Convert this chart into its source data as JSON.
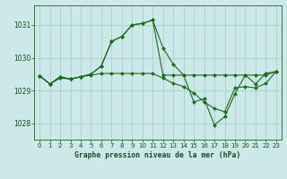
{
  "title": "Graphe pression niveau de la mer (hPa)",
  "background_color": "#cce8e8",
  "grid_color": "#aad0d0",
  "line_color": "#1a6b1a",
  "marker_color": "#1a6b1a",
  "xlim": [
    -0.5,
    23.5
  ],
  "ylim": [
    1027.5,
    1031.6
  ],
  "yticks": [
    1028,
    1029,
    1030,
    1031
  ],
  "xticks": [
    0,
    1,
    2,
    3,
    4,
    5,
    6,
    7,
    8,
    9,
    10,
    11,
    12,
    13,
    14,
    15,
    16,
    17,
    18,
    19,
    20,
    21,
    22,
    23
  ],
  "series": [
    [
      1029.45,
      1029.2,
      1029.42,
      1029.35,
      1029.42,
      1029.5,
      1029.75,
      1030.5,
      1030.65,
      1031.0,
      1031.05,
      1031.15,
      1030.3,
      1029.8,
      1029.47,
      1028.65,
      1028.75,
      1027.95,
      1028.2,
      1028.9,
      1029.47,
      1029.2,
      1029.52,
      1029.58
    ],
    [
      1029.45,
      1029.2,
      1029.42,
      1029.35,
      1029.42,
      1029.5,
      1029.75,
      1030.5,
      1030.65,
      1031.0,
      1031.05,
      1031.15,
      1029.47,
      1029.47,
      1029.47,
      1029.47,
      1029.47,
      1029.47,
      1029.47,
      1029.47,
      1029.47,
      1029.47,
      1029.47,
      1029.58
    ],
    [
      1029.45,
      1029.2,
      1029.38,
      1029.35,
      1029.42,
      1029.47,
      1029.52,
      1029.52,
      1029.52,
      1029.52,
      1029.52,
      1029.52,
      1029.38,
      1029.22,
      1029.12,
      1028.92,
      1028.65,
      1028.45,
      1028.35,
      1029.08,
      1029.12,
      1029.08,
      1029.22,
      1029.58
    ]
  ]
}
